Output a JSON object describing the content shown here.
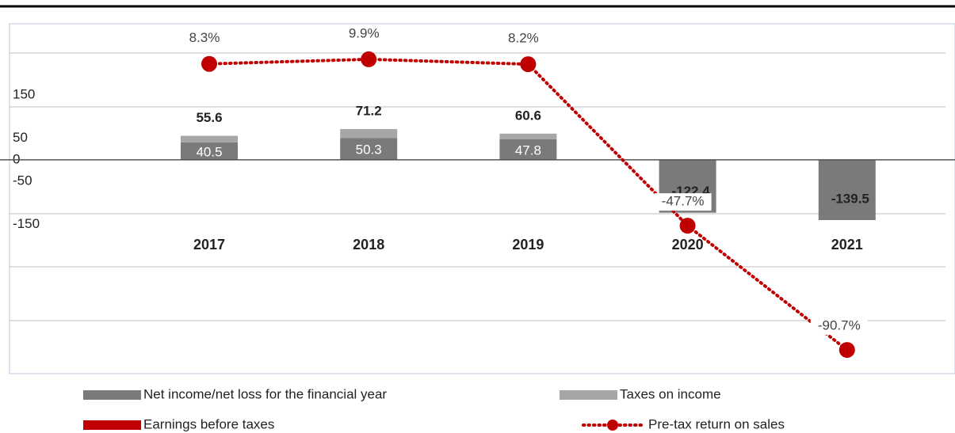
{
  "chart_data": {
    "type": "bar",
    "categories": [
      "2017",
      "2018",
      "2019",
      "2020",
      "2021"
    ],
    "series": [
      {
        "name": "Net income/net loss for the financial year",
        "color": "#7a7a7a",
        "values": [
          40.5,
          50.3,
          47.8,
          -122.4,
          -139.5
        ],
        "value_labels": [
          "40.5",
          "50.3",
          "47.8",
          null,
          null
        ]
      },
      {
        "name": "Taxes on income",
        "color": "#a6a6a6",
        "values": [
          15.1,
          20.9,
          12.8,
          0,
          0
        ]
      },
      {
        "name": "Earnings before taxes",
        "color": "#c00000",
        "values": [
          55.6,
          71.2,
          60.6,
          -122.4,
          -139.5
        ]
      },
      {
        "name": "Pre-tax return on sales",
        "type": "line",
        "axis": "y2",
        "color": "#c00000",
        "values": [
          8.3,
          9.9,
          8.2,
          -47.7,
          -90.7
        ],
        "value_labels": [
          "8.3%",
          "9.9%",
          "8.2%",
          "-47.7%",
          "-90.7%"
        ]
      }
    ],
    "ylim": [
      -495,
      315
    ],
    "yticks": [
      150,
      50,
      0,
      -50,
      -150
    ],
    "y2lim": [
      -98.9,
      22.2
    ],
    "legend": "bottom"
  }
}
